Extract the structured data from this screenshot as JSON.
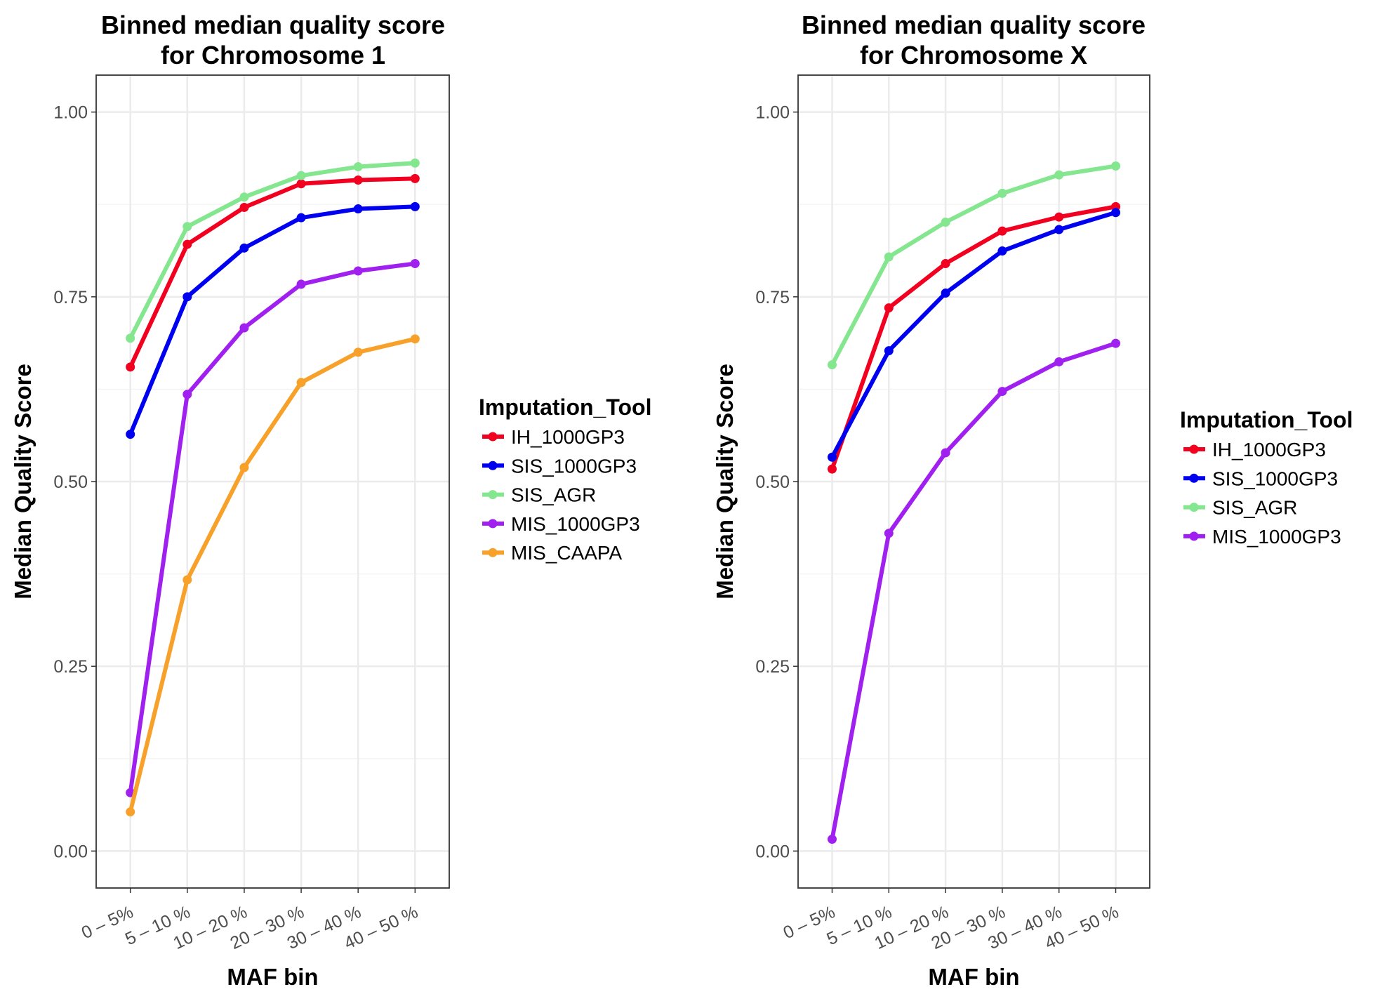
{
  "chart_data": [
    {
      "type": "line",
      "title": "Binned median quality score\nfor Chromosome 1",
      "xlabel": "MAF bin",
      "ylabel": "Median Quality Score",
      "categories": [
        "0 – 5%",
        "5 – 10 %",
        "10 – 20 %",
        "20 – 30 %",
        "30 – 40 %",
        "40 – 50 %"
      ],
      "ylim": [
        -0.05,
        1.05
      ],
      "yticks": [
        "0.00",
        "0.25",
        "0.50",
        "0.75",
        "1.00"
      ],
      "grid": true,
      "legend_title": "Imputation_Tool",
      "legend_position": "right",
      "series": [
        {
          "name": "IH_1000GP3",
          "color": "#f2001f",
          "values": [
            0.655,
            0.821,
            0.871,
            0.903,
            0.908,
            0.91
          ]
        },
        {
          "name": "SIS_1000GP3",
          "color": "#0000f0",
          "values": [
            0.564,
            0.75,
            0.816,
            0.857,
            0.869,
            0.872
          ]
        },
        {
          "name": "SIS_AGR",
          "color": "#84e68f",
          "values": [
            0.694,
            0.845,
            0.885,
            0.914,
            0.926,
            0.931
          ]
        },
        {
          "name": "MIS_1000GP3",
          "color": "#a020f0",
          "values": [
            0.079,
            0.618,
            0.708,
            0.767,
            0.785,
            0.795
          ]
        },
        {
          "name": "MIS_CAAPA",
          "color": "#f8a12a",
          "values": [
            0.053,
            0.367,
            0.519,
            0.634,
            0.675,
            0.693
          ]
        }
      ]
    },
    {
      "type": "line",
      "title": "Binned median quality score\nfor Chromosome X",
      "xlabel": "MAF bin",
      "ylabel": "Median Quality Score",
      "categories": [
        "0 – 5%",
        "5 – 10 %",
        "10 – 20 %",
        "20 – 30 %",
        "30 – 40 %",
        "40 – 50 %"
      ],
      "ylim": [
        -0.05,
        1.05
      ],
      "yticks": [
        "0.00",
        "0.25",
        "0.50",
        "0.75",
        "1.00"
      ],
      "grid": true,
      "legend_title": "Imputation_Tool",
      "legend_position": "right",
      "series": [
        {
          "name": "IH_1000GP3",
          "color": "#f2001f",
          "values": [
            0.517,
            0.735,
            0.795,
            0.839,
            0.858,
            0.872
          ]
        },
        {
          "name": "SIS_1000GP3",
          "color": "#0000f0",
          "values": [
            0.533,
            0.677,
            0.755,
            0.812,
            0.841,
            0.864
          ]
        },
        {
          "name": "SIS_AGR",
          "color": "#84e68f",
          "values": [
            0.658,
            0.804,
            0.851,
            0.89,
            0.915,
            0.927
          ]
        },
        {
          "name": "MIS_1000GP3",
          "color": "#a020f0",
          "values": [
            0.016,
            0.43,
            0.539,
            0.622,
            0.662,
            0.687
          ]
        }
      ]
    }
  ]
}
